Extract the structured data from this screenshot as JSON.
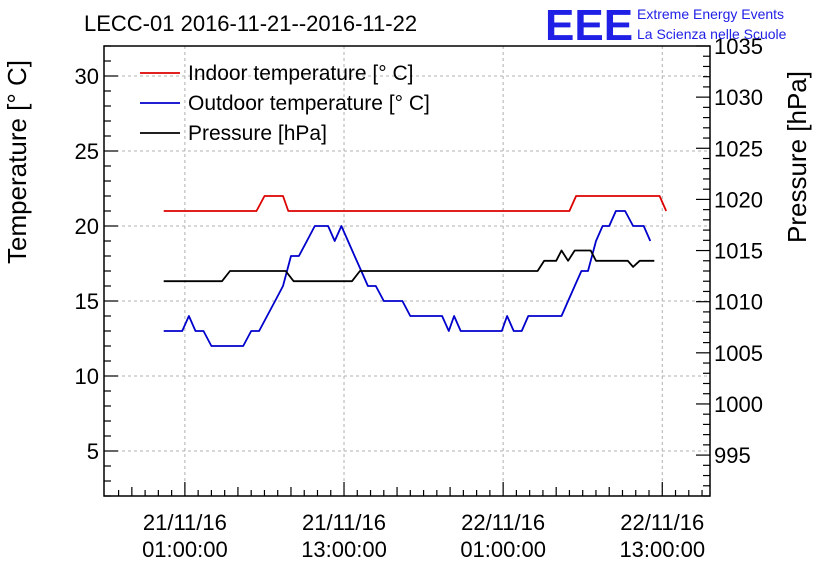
{
  "chart_data": {
    "type": "line",
    "title": "LECC-01 2016-11-21--2016-11-22",
    "ylabel": "Temperature [° C]",
    "y2label": "Pressure [hPa]",
    "xlabel": "",
    "ylim": [
      2,
      32
    ],
    "y2lim": [
      991,
      1035
    ],
    "yticks": [
      5,
      10,
      15,
      20,
      25,
      30
    ],
    "y2ticks": [
      995,
      1000,
      1005,
      1010,
      1015,
      1020,
      1025,
      1030,
      1035
    ],
    "xticks": [
      {
        "t": 1.0,
        "line1": "21/11/16",
        "line2": "01:00:00"
      },
      {
        "t": 13.0,
        "line1": "21/11/16",
        "line2": "13:00:00"
      },
      {
        "t": 25.0,
        "line1": "22/11/16",
        "line2": "01:00:00"
      },
      {
        "t": 37.0,
        "line1": "22/11/16",
        "line2": "13:00:00"
      }
    ],
    "grid": true,
    "legend_position": "top-left",
    "series": [
      {
        "name": "Indoor temperature [° C]",
        "axis": "left",
        "color": "#dd0000",
        "points": [
          [
            -0.6,
            21
          ],
          [
            6.4,
            21
          ],
          [
            7.0,
            22
          ],
          [
            8.4,
            22
          ],
          [
            8.8,
            21
          ],
          [
            30.0,
            21
          ],
          [
            30.5,
            22
          ],
          [
            36.8,
            22
          ],
          [
            37.3,
            21
          ]
        ]
      },
      {
        "name": "Outdoor temperature [° C]",
        "axis": "left",
        "color": "#0000cc",
        "points": [
          [
            -0.6,
            13
          ],
          [
            0.8,
            13
          ],
          [
            1.3,
            14
          ],
          [
            1.8,
            13
          ],
          [
            2.4,
            13
          ],
          [
            3.0,
            12
          ],
          [
            5.4,
            12
          ],
          [
            6.0,
            13
          ],
          [
            6.6,
            13
          ],
          [
            7.2,
            14
          ],
          [
            7.8,
            15
          ],
          [
            8.4,
            16
          ],
          [
            9.0,
            18
          ],
          [
            9.6,
            18
          ],
          [
            10.2,
            19
          ],
          [
            10.8,
            20
          ],
          [
            11.8,
            20
          ],
          [
            12.3,
            19
          ],
          [
            12.8,
            20
          ],
          [
            13.3,
            19
          ],
          [
            13.8,
            18
          ],
          [
            14.3,
            17
          ],
          [
            14.8,
            16
          ],
          [
            15.4,
            16
          ],
          [
            16.0,
            15
          ],
          [
            17.4,
            15
          ],
          [
            18.0,
            14
          ],
          [
            20.4,
            14
          ],
          [
            20.9,
            13
          ],
          [
            21.3,
            14
          ],
          [
            21.8,
            13
          ],
          [
            24.9,
            13
          ],
          [
            25.3,
            14
          ],
          [
            25.8,
            13
          ],
          [
            26.4,
            13
          ],
          [
            26.9,
            14
          ],
          [
            29.4,
            14
          ],
          [
            29.9,
            15
          ],
          [
            30.4,
            16
          ],
          [
            30.9,
            17
          ],
          [
            31.4,
            17
          ],
          [
            32.0,
            19
          ],
          [
            32.5,
            20
          ],
          [
            33.0,
            20
          ],
          [
            33.5,
            21
          ],
          [
            34.2,
            21
          ],
          [
            34.8,
            20
          ],
          [
            35.6,
            20
          ],
          [
            36.1,
            19
          ]
        ]
      },
      {
        "name": "Pressure [hPa]",
        "axis": "right",
        "color": "#000000",
        "points": [
          [
            -0.6,
            1012
          ],
          [
            3.8,
            1012
          ],
          [
            4.4,
            1013
          ],
          [
            8.6,
            1013
          ],
          [
            9.2,
            1012
          ],
          [
            13.6,
            1012
          ],
          [
            14.2,
            1013
          ],
          [
            27.6,
            1013
          ],
          [
            28.1,
            1014
          ],
          [
            29.0,
            1014
          ],
          [
            29.4,
            1015
          ],
          [
            29.9,
            1014
          ],
          [
            30.4,
            1015
          ],
          [
            31.6,
            1015
          ],
          [
            32.0,
            1014
          ],
          [
            34.4,
            1014
          ],
          [
            34.8,
            1013.4
          ],
          [
            35.3,
            1014
          ],
          [
            36.4,
            1014
          ]
        ]
      }
    ]
  },
  "logo": {
    "mark": "EEE",
    "line1": "Extreme Energy Events",
    "line2": "La Scienza nelle Scuole",
    "color": "#1f1fe6"
  }
}
